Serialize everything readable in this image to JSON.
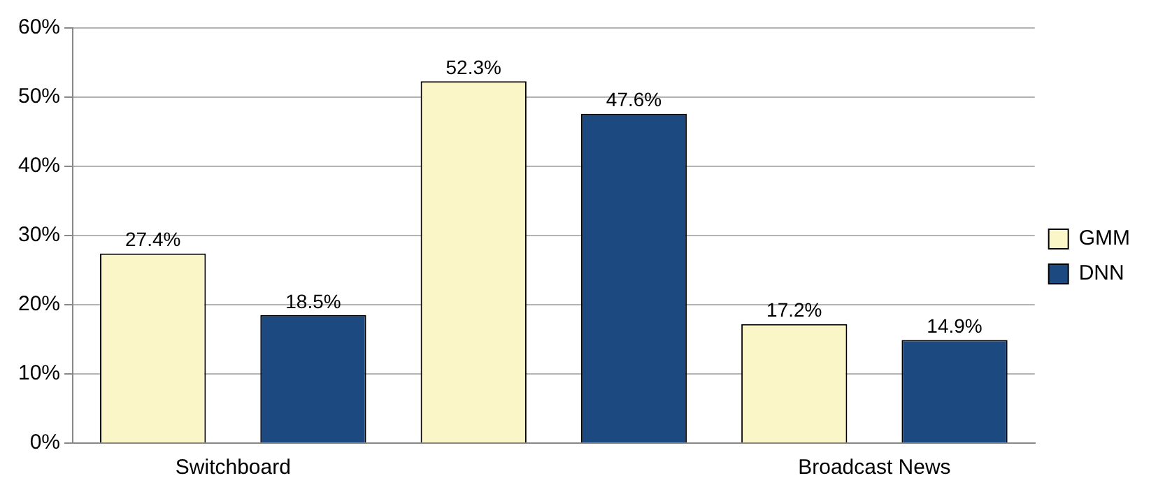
{
  "chart_data": {
    "type": "bar",
    "categories": [
      "Switchboard",
      null,
      "Broadcast News"
    ],
    "series": [
      {
        "name": "GMM",
        "color": "#faf6c8",
        "values": [
          27.4,
          52.3,
          17.2
        ],
        "value_labels": [
          "27.4%",
          "52.3%",
          "17.2%"
        ]
      },
      {
        "name": "DNN",
        "color": "#1c4a80",
        "values": [
          18.5,
          47.6,
          14.9
        ],
        "value_labels": [
          "18.5%",
          "47.6%",
          "14.9%"
        ]
      }
    ],
    "ylim": [
      0,
      60
    ],
    "yticks": [
      {
        "value": 0,
        "label": "0%"
      },
      {
        "value": 10,
        "label": "10%"
      },
      {
        "value": 20,
        "label": "20%"
      },
      {
        "value": 30,
        "label": "30%"
      },
      {
        "value": 40,
        "label": "40%"
      },
      {
        "value": 50,
        "label": "50%"
      },
      {
        "value": 60,
        "label": "60%"
      }
    ],
    "grid": "y",
    "legend": "right"
  }
}
